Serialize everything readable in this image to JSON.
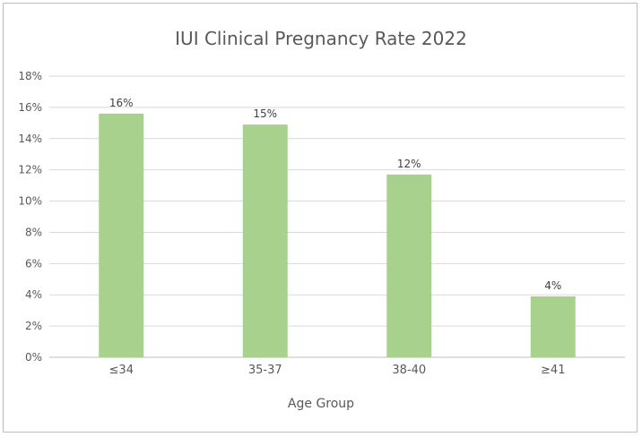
{
  "chart_data": {
    "type": "bar",
    "title": "IUI Clinical Pregnancy Rate 2022",
    "xlabel": "Age Group",
    "ylabel": "",
    "categories": [
      "≤34",
      "35-37",
      "38-40",
      "≥41"
    ],
    "values": [
      15.6,
      14.9,
      11.7,
      3.9
    ],
    "data_labels": [
      "16%",
      "15%",
      "12%",
      "4%"
    ],
    "ylim": [
      0,
      18
    ],
    "yticks": [
      0,
      2,
      4,
      6,
      8,
      10,
      12,
      14,
      16,
      18
    ],
    "ytick_labels": [
      "0%",
      "2%",
      "4%",
      "6%",
      "8%",
      "10%",
      "12%",
      "14%",
      "16%",
      "18%"
    ],
    "grid": true,
    "legend": "none",
    "bar_color": "#a9d18e",
    "grid_color": "#d9d9d9"
  }
}
